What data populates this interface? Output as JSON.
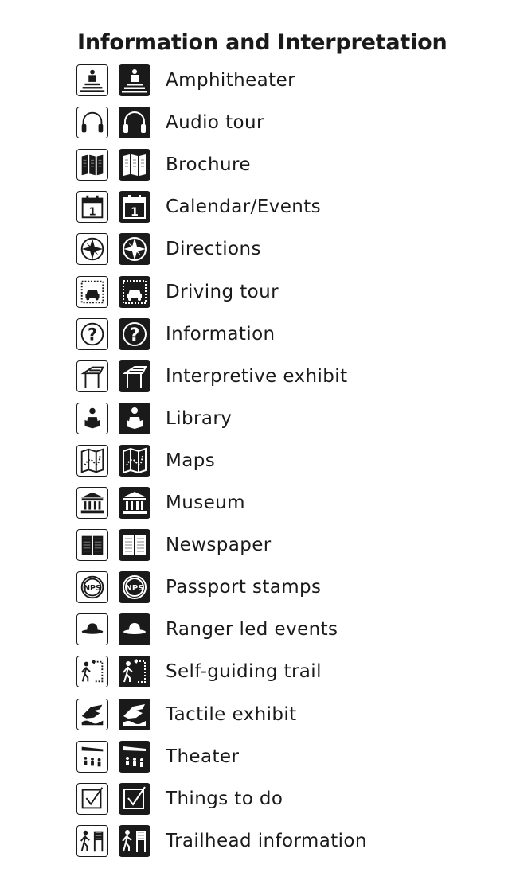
{
  "title": "Information and Interpretation",
  "colors": {
    "ink": "#1a1a1a",
    "paper": "#ffffff"
  },
  "items": [
    {
      "label": "Amphitheater",
      "icon": "amphitheater-icon"
    },
    {
      "label": "Audio tour",
      "icon": "headphones-icon"
    },
    {
      "label": "Brochure",
      "icon": "brochure-icon"
    },
    {
      "label": "Calendar/Events",
      "icon": "calendar-icon"
    },
    {
      "label": "Directions",
      "icon": "compass-icon"
    },
    {
      "label": "Driving tour",
      "icon": "car-icon"
    },
    {
      "label": "Information",
      "icon": "question-icon"
    },
    {
      "label": "Interpretive exhibit",
      "icon": "exhibit-icon"
    },
    {
      "label": "Library",
      "icon": "reader-icon"
    },
    {
      "label": "Maps",
      "icon": "map-icon"
    },
    {
      "label": "Museum",
      "icon": "museum-icon"
    },
    {
      "label": "Newspaper",
      "icon": "newspaper-icon"
    },
    {
      "label": "Passport stamps",
      "icon": "stamp-icon"
    },
    {
      "label": "Ranger led events",
      "icon": "ranger-hat-icon"
    },
    {
      "label": "Self-guiding trail",
      "icon": "hiker-trail-icon"
    },
    {
      "label": "Tactile exhibit",
      "icon": "hand-icon"
    },
    {
      "label": "Theater",
      "icon": "theater-icon"
    },
    {
      "label": "Things to do",
      "icon": "checkbox-icon"
    },
    {
      "label": "Trailhead information",
      "icon": "trailhead-icon"
    }
  ],
  "stamp_text": "NPS",
  "calendar_day": "1"
}
